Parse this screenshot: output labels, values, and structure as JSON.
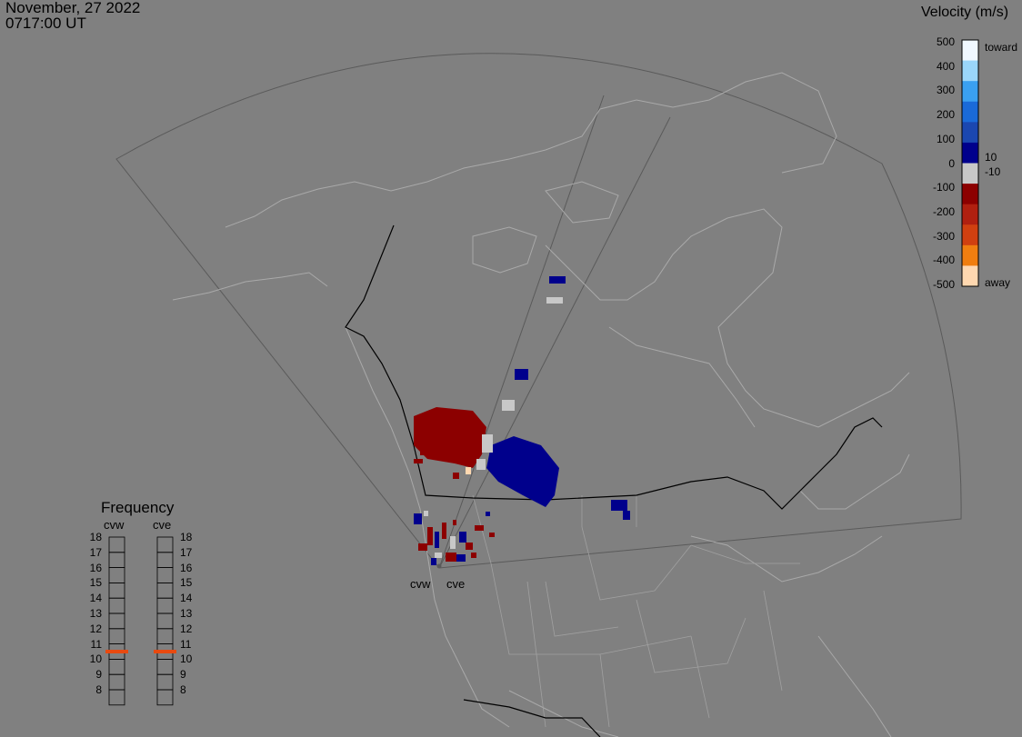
{
  "header": {
    "date": "November, 27 2022",
    "time": "0717:00 UT"
  },
  "velocity_scale": {
    "title": "Velocity (m/s)",
    "ticks": [
      "500",
      "400",
      "300",
      "200",
      "100",
      "0",
      "-100",
      "-200",
      "-300",
      "-400",
      "-500"
    ],
    "labels": {
      "toward": "toward",
      "away": "away",
      "pos_thresh": "10",
      "neg_thresh": "-10"
    },
    "colors": [
      "#f0f8ff",
      "#9ad6fa",
      "#3aa0f0",
      "#1a6ad8",
      "#1b47b0",
      "#00008c",
      "#c8c8c8",
      "#8c0000",
      "#b02010",
      "#d04010",
      "#f07e10",
      "#ffd8b0"
    ]
  },
  "frequency": {
    "title": "Frequency",
    "radars": [
      "cvw",
      "cve"
    ],
    "levels": [
      "18",
      "17",
      "16",
      "15",
      "14",
      "13",
      "12",
      "11",
      "10",
      "9",
      "8"
    ],
    "active_mhz": [
      10.5,
      10.5
    ],
    "active_color": "#e84a10"
  },
  "map": {
    "radar_labels": [
      "cvw",
      "cve"
    ],
    "land_color": "#808080",
    "border_color": "#000000",
    "outline_color": "#a9a9a9"
  }
}
